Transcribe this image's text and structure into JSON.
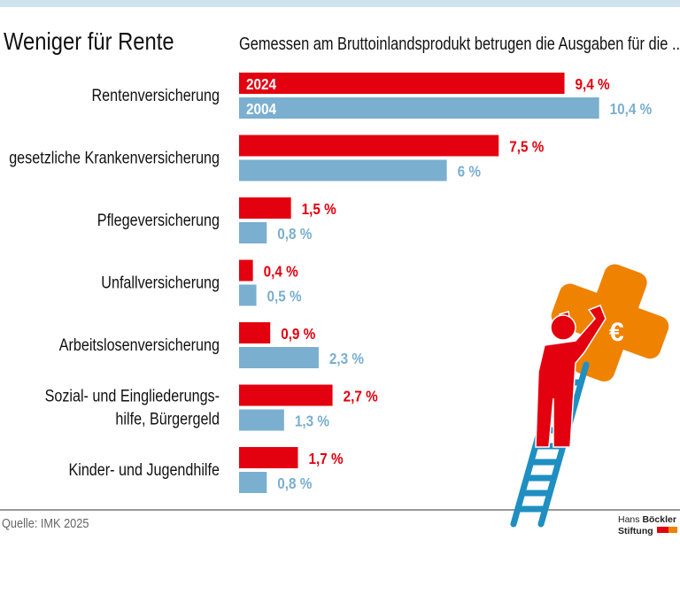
{
  "title": "Weniger für Rente",
  "subtitle": "Gemessen am Bruttoinlandsprodukt betrugen die Ausgaben für die ...",
  "source": "Quelle: IMK 2025",
  "logo": {
    "line1_light": "Hans",
    "line1_bold": "Böckler",
    "line2": "Stiftung"
  },
  "colors": {
    "series_2024": "#e3000f",
    "series_2004": "#7aafcf",
    "top_band": "#cfe3ee",
    "illustration_orange": "#ef8200",
    "ladder": "#1f8fc1"
  },
  "illustration": "person-on-ladder-with-euro-plaster-icon",
  "chart_data": {
    "type": "bar",
    "orientation": "horizontal",
    "title": "Weniger für Rente",
    "unit": "%",
    "categories": [
      "Rentenversicherung",
      "gesetzliche Krankenversicherung",
      "Pflegeversicherung",
      "Unfallversicherung",
      "Arbeitslosenversicherung",
      "Sozial- und Eingliederungs-\nhilfe, Bürgergeld",
      "Kinder- und Jugendhilfe"
    ],
    "series": [
      {
        "name": "2024",
        "values": [
          9.4,
          7.5,
          1.5,
          0.4,
          0.9,
          2.7,
          1.7
        ],
        "labels": [
          "9,4 %",
          "7,5 %",
          "1,5 %",
          "0,4 %",
          "0,9 %",
          "2,7 %",
          "1,7 %"
        ]
      },
      {
        "name": "2004",
        "values": [
          10.4,
          6,
          0.8,
          0.5,
          2.3,
          1.3,
          0.8
        ],
        "labels": [
          "10,4 %",
          "6 %",
          "0,8 %",
          "0,5 %",
          "2,3 %",
          "1,3 %",
          "0,8 %"
        ]
      }
    ],
    "grid": false,
    "legend": "inside-first-bars"
  }
}
